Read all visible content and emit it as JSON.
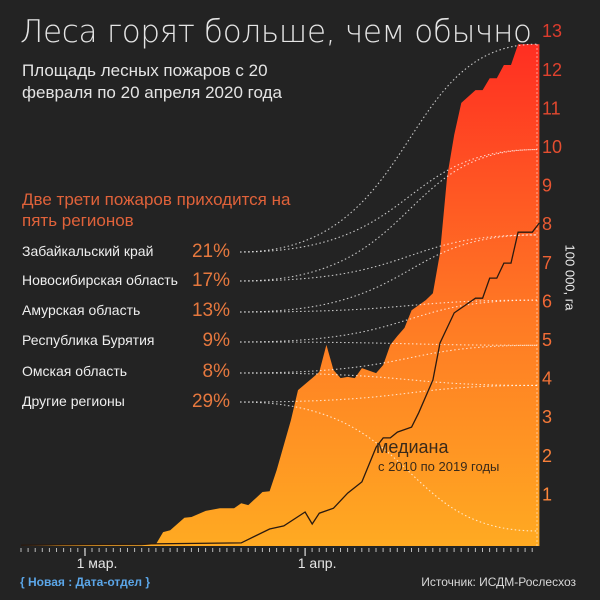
{
  "title": "Леса горят больше, чем обычно",
  "subtitle": "Площадь лесных пожаров с 20 февраля по 20 апреля 2020 года",
  "regions_title": "Две трети пожаров приходится на пять регионов",
  "regions": [
    {
      "name": "Забайкальский край",
      "share": "21%"
    },
    {
      "name": "Новосибирская область",
      "share": "17%"
    },
    {
      "name": "Амурская область",
      "share": "13%"
    },
    {
      "name": "Республика Бурятия",
      "share": "9%"
    },
    {
      "name": "Омская область",
      "share": "8%"
    },
    {
      "name": "Другие регионы",
      "share": "29%"
    }
  ],
  "credit": "{ Новая : Дата-отдел }",
  "source": "Источник: ИСДМ-Рослесхоз",
  "colors": {
    "background": "#232323",
    "area_top": "#ff2e22",
    "area_bottom": "#ffaa22",
    "median_line": "#2a1a10",
    "credit": "#5ba6e8"
  },
  "chart_data": {
    "type": "area",
    "ylabel": "100 000, га",
    "yticks": [
      "1",
      "2",
      "3",
      "4",
      "5",
      "6",
      "7",
      "8",
      "9",
      "10",
      "11",
      "12",
      "13"
    ],
    "ylim": [
      0,
      13
    ],
    "xticks": [
      {
        "date": "2020-03-01",
        "label": "1 мар."
      },
      {
        "date": "2020-04-01",
        "label": "1 апр."
      }
    ],
    "axis_side": "right",
    "series": [
      {
        "name": "",
        "type": "area",
        "points": [
          [
            "2020-02-21",
            0
          ],
          [
            "2020-03-01",
            0.02
          ],
          [
            "2020-03-09",
            0.02
          ],
          [
            "2020-03-11",
            0.05
          ],
          [
            "2020-03-12",
            0.36
          ],
          [
            "2020-03-13",
            0.41
          ],
          [
            "2020-03-15",
            0.73
          ],
          [
            "2020-03-16",
            0.75
          ],
          [
            "2020-03-18",
            0.91
          ],
          [
            "2020-03-20",
            0.98
          ],
          [
            "2020-03-22",
            0.98
          ],
          [
            "2020-03-23",
            1.11
          ],
          [
            "2020-03-24",
            1.06
          ],
          [
            "2020-03-26",
            1.4
          ],
          [
            "2020-03-27",
            1.42
          ],
          [
            "2020-03-28",
            1.97
          ],
          [
            "2020-03-30",
            3.26
          ],
          [
            "2020-03-31",
            4.04
          ],
          [
            "2020-04-02",
            4.35
          ],
          [
            "2020-04-03",
            4.51
          ],
          [
            "2020-04-04",
            5.21
          ],
          [
            "2020-04-05",
            4.56
          ],
          [
            "2020-04-06",
            4.35
          ],
          [
            "2020-04-07",
            4.38
          ],
          [
            "2020-04-08",
            4.35
          ],
          [
            "2020-04-09",
            4.61
          ],
          [
            "2020-04-11",
            4.48
          ],
          [
            "2020-04-12",
            4.69
          ],
          [
            "2020-04-13",
            5.21
          ],
          [
            "2020-04-14",
            5.44
          ],
          [
            "2020-04-15",
            5.65
          ],
          [
            "2020-04-16",
            6.11
          ],
          [
            "2020-04-18",
            6.37
          ],
          [
            "2020-04-19",
            6.55
          ],
          [
            "2020-04-20",
            7.59
          ],
          [
            "2020-04-21",
            9.56
          ],
          [
            "2020-04-22",
            10.65
          ],
          [
            "2020-04-23",
            11.48
          ],
          [
            "2020-04-25",
            11.81
          ],
          [
            "2020-04-26",
            11.81
          ],
          [
            "2020-04-27",
            12.12
          ],
          [
            "2020-04-28",
            12.12
          ],
          [
            "2020-04-29",
            12.46
          ],
          [
            "2020-04-30",
            12.46
          ],
          [
            "2020-05-01",
            13.0
          ],
          [
            "2020-05-04",
            13.0
          ]
        ]
      },
      {
        "name": "медиана",
        "note": "с 2010 по 2019 годы",
        "type": "line",
        "points": [
          [
            "2020-02-21",
            0.02
          ],
          [
            "2020-03-23",
            0.08
          ],
          [
            "2020-03-27",
            0.44
          ],
          [
            "2020-03-29",
            0.52
          ],
          [
            "2020-04-01",
            0.88
          ],
          [
            "2020-04-02",
            0.57
          ],
          [
            "2020-04-03",
            0.85
          ],
          [
            "2020-04-05",
            0.98
          ],
          [
            "2020-04-07",
            1.37
          ],
          [
            "2020-04-09",
            1.66
          ],
          [
            "2020-04-11",
            2.56
          ],
          [
            "2020-04-12",
            2.8
          ],
          [
            "2020-04-13",
            2.8
          ],
          [
            "2020-04-14",
            2.95
          ],
          [
            "2020-04-16",
            3.08
          ],
          [
            "2020-04-17",
            3.45
          ],
          [
            "2020-04-19",
            4.3
          ],
          [
            "2020-04-20",
            5.26
          ],
          [
            "2020-04-22",
            6.04
          ],
          [
            "2020-04-25",
            6.42
          ],
          [
            "2020-04-26",
            6.42
          ],
          [
            "2020-04-27",
            6.94
          ],
          [
            "2020-04-28",
            6.94
          ],
          [
            "2020-04-29",
            7.33
          ],
          [
            "2020-04-30",
            7.33
          ],
          [
            "2020-05-01",
            8.13
          ],
          [
            "2020-05-03",
            8.13
          ],
          [
            "2020-05-04",
            8.37
          ]
        ]
      }
    ]
  }
}
